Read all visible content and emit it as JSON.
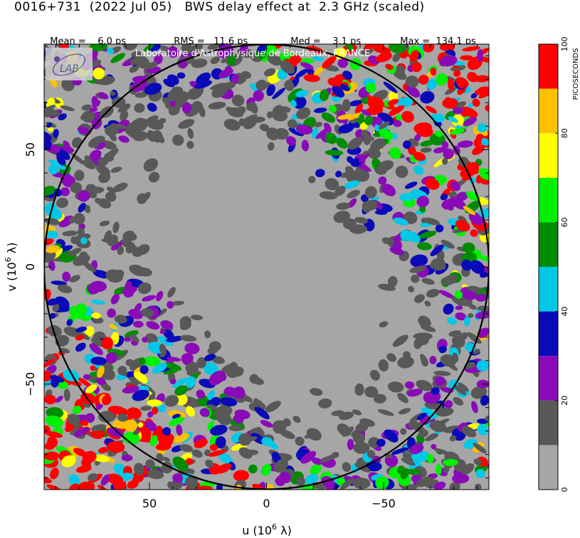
{
  "header": {
    "title": "0016+731  (2022 Jul 05)   BWS delay effect at  2.3 GHz (scaled)",
    "stats": [
      {
        "label": "Mean =",
        "value": "6.0 ps"
      },
      {
        "label": "RMS =",
        "value": "11.6 ps"
      },
      {
        "label": "Med =",
        "value": "3.1 ps"
      },
      {
        "label": "Max =",
        "value": "134.1 ps"
      }
    ],
    "credit": "Laboratoire d'Astrophysique de Bordeaux, FRANCE",
    "logo_text": "LAB"
  },
  "chart_data": {
    "type": "heatmap",
    "title": "0016+731  (2022 Jul 05)   BWS delay effect at  2.3 GHz (scaled)",
    "xlabel": "u  (10^6 λ)",
    "ylabel": "v  (10^6 λ)",
    "xlim": [
      95,
      -95
    ],
    "ylim": [
      -95,
      95
    ],
    "x_ticks": [
      "50",
      "0",
      "−50"
    ],
    "y_ticks": [
      "50",
      "0",
      "−50"
    ],
    "x_tick_values": [
      50,
      0,
      -50
    ],
    "y_tick_values": [
      50,
      0,
      -50
    ],
    "circle_radius": 95,
    "colorbar": {
      "label": "PICOSECONDS",
      "range": [
        0,
        100
      ],
      "tick_labels": [
        "0",
        "20",
        "40",
        "60",
        "80",
        "100"
      ],
      "tick_values": [
        0,
        20,
        40,
        60,
        80,
        100
      ],
      "bins": [
        {
          "from": 0,
          "to": 10,
          "color": "#a6a6a6"
        },
        {
          "from": 10,
          "to": 20,
          "color": "#585858"
        },
        {
          "from": 20,
          "to": 30,
          "color": "#8a0ab8"
        },
        {
          "from": 30,
          "to": 40,
          "color": "#0a0ab8"
        },
        {
          "from": 40,
          "to": 50,
          "color": "#00c8e6"
        },
        {
          "from": 50,
          "to": 60,
          "color": "#008c00"
        },
        {
          "from": 60,
          "to": 70,
          "color": "#00f000"
        },
        {
          "from": 70,
          "to": 80,
          "color": "#ffff00"
        },
        {
          "from": 80,
          "to": 90,
          "color": "#ffc000"
        },
        {
          "from": 90,
          "to": 100,
          "color": "#ff0000"
        }
      ]
    },
    "statistics": {
      "mean_ps": 6.0,
      "rms_ps": 11.6,
      "median_ps": 3.1,
      "max_ps": 134.1
    }
  }
}
